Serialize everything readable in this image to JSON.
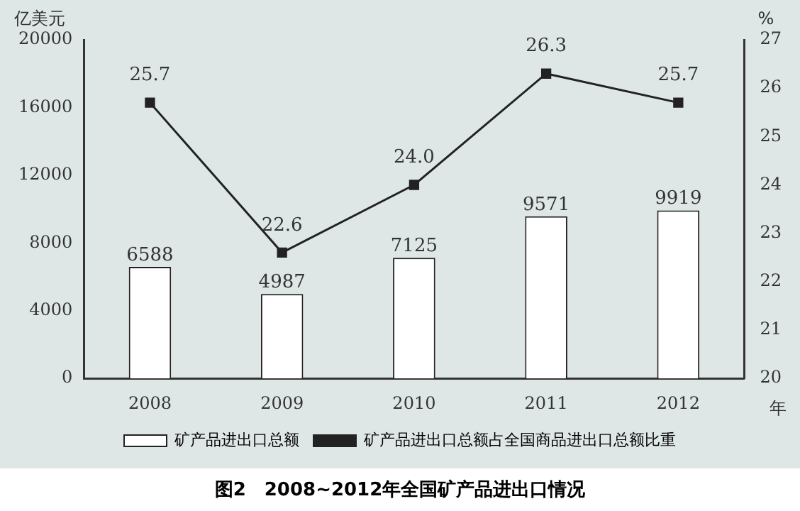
{
  "chart_data": {
    "type": "bar",
    "title": "图2　2008~2012年全国矿产品进出口情况",
    "xlabel": "年",
    "ylabel": "亿美元",
    "y2label": "%",
    "categories": [
      "2008",
      "2009",
      "2010",
      "2011",
      "2012"
    ],
    "series": [
      {
        "name": "矿产品进出口总额",
        "color": "#ffffff",
        "values": [
          6588,
          4987,
          7125,
          9571,
          9919
        ]
      },
      {
        "name": "矿产品进出口总额占全国商品进出口总额比重",
        "type": "line",
        "axis": "y2",
        "color": "#222222",
        "marker": "square",
        "values": [
          25.7,
          22.6,
          24.0,
          26.3,
          25.7
        ],
        "value_labels": [
          "25.7",
          "22.6",
          "24.0",
          "26.3",
          "25.7"
        ]
      }
    ],
    "ylim": [
      0,
      20000
    ],
    "yticks": [
      0,
      4000,
      8000,
      12000,
      16000,
      20000
    ],
    "y2lim": [
      20,
      27
    ],
    "y2ticks": [
      20,
      21,
      22,
      23,
      24,
      25,
      26,
      27
    ],
    "data_labels": true,
    "legend": "bottom",
    "grid": false
  }
}
